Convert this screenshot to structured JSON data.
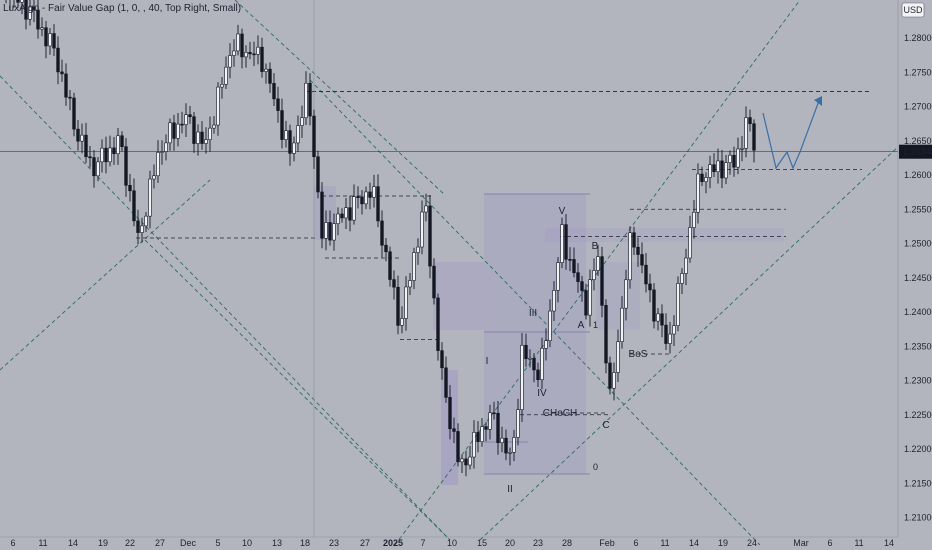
{
  "indicator_label": "LuxAlgo - Fair Value Gap (1, 0, , 40, Top Right, Small)",
  "currency_badge": "USD",
  "current_price": "1.26340",
  "colors": {
    "background": "#b2b5be",
    "candle_up": "#f2f3f5",
    "candle_down": "#131722",
    "dashed_line": "#1f2230",
    "channel_line": "#2e6b62",
    "zone_fill": "#9b93c7",
    "projection": "#3a6fa6"
  },
  "chart_data": {
    "type": "candlestick",
    "y_axis": {
      "range": [
        1.2075,
        1.2865
      ],
      "ticks": [
        "1.28000",
        "1.27500",
        "1.27000",
        "1.26500",
        "1.26000",
        "1.25500",
        "1.25000",
        "1.24500",
        "1.24000",
        "1.23500",
        "1.23000",
        "1.22500",
        "1.22000",
        "1.21500",
        "1.21000"
      ]
    },
    "x_axis": {
      "ticks": [
        "6",
        "11",
        "14",
        "19",
        "22",
        "27",
        "Dec",
        "5",
        "10",
        "13",
        "18",
        "23",
        "27",
        "2025",
        "7",
        "10",
        "15",
        "20",
        "23",
        "28",
        "Feb",
        "6",
        "11",
        "14",
        "19",
        "24",
        "Mar",
        "6",
        "11",
        "14"
      ]
    },
    "horizontal_levels": [
      1.2722,
      1.2608,
      1.255,
      1.251,
      1.236,
      1.225
    ],
    "labels": {
      "wave_1": "I",
      "wave_2": "II",
      "wave_3": "III",
      "wave_4": "IV",
      "wave_5": "V",
      "point_a": "A",
      "point_b": "B",
      "point_c": "C",
      "choch": "CHoCH",
      "bos": "BoS"
    },
    "fib_marks": [
      "1",
      "0"
    ]
  }
}
